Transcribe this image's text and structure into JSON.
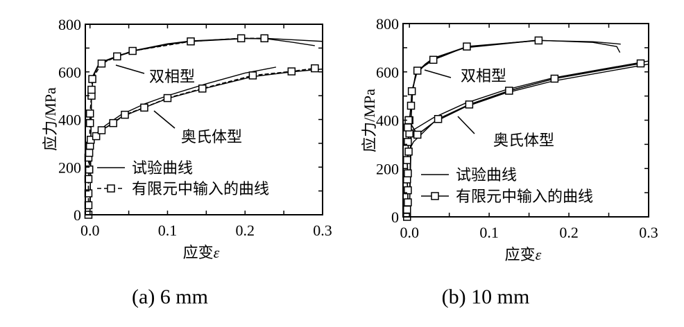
{
  "chart_data": [
    {
      "type": "line",
      "caption": "(a) 6 mm",
      "xlabel": "应变",
      "xlabel_symbol": "ε",
      "ylabel": "应力/MPa",
      "xlim": [
        -0.006,
        0.3
      ],
      "ylim": [
        0,
        800
      ],
      "xticks": [
        0.0,
        0.1,
        0.2,
        0.3
      ],
      "xtick_labels": [
        "0.0",
        "0.1",
        "0.2",
        "0.3"
      ],
      "yticks": [
        0,
        200,
        400,
        600,
        800
      ],
      "ytick_labels": [
        "0",
        "200",
        "400",
        "600",
        "800"
      ],
      "legend": {
        "placement": "center-left",
        "entries": [
          "试验曲线",
          "有限元中输入的曲线"
        ],
        "fe_style": "dashed"
      },
      "annotations": [
        "双相型",
        "奥氏体型"
      ],
      "series": [
        {
          "name": "试验曲线 双相型 1",
          "kind": "test",
          "x": [
            0,
            0.001,
            0.002,
            0.004,
            0.01,
            0.02,
            0.04,
            0.06,
            0.1,
            0.13,
            0.2,
            0.23,
            0.26,
            0.3
          ],
          "y": [
            0,
            300,
            500,
            580,
            620,
            645,
            670,
            690,
            715,
            728,
            740,
            740,
            735,
            728
          ]
        },
        {
          "name": "试验曲线 双相型 2",
          "kind": "test",
          "x": [
            0,
            0.001,
            0.002,
            0.004,
            0.01,
            0.02,
            0.04,
            0.06,
            0.1,
            0.13,
            0.2,
            0.23,
            0.26,
            0.29
          ],
          "y": [
            0,
            300,
            500,
            585,
            625,
            648,
            672,
            692,
            718,
            730,
            741,
            738,
            725,
            710
          ]
        },
        {
          "name": "试验曲线 奥氏体型 1",
          "kind": "test",
          "x": [
            0,
            0.001,
            0.003,
            0.008,
            0.02,
            0.04,
            0.07,
            0.1,
            0.15,
            0.2,
            0.24
          ],
          "y": [
            0,
            250,
            320,
            340,
            375,
            420,
            465,
            500,
            550,
            595,
            620
          ]
        },
        {
          "name": "试验曲线 奥氏体型 2",
          "kind": "test",
          "x": [
            0,
            0.001,
            0.003,
            0.008,
            0.02,
            0.04,
            0.07,
            0.1,
            0.145,
            0.21,
            0.26,
            0.3
          ],
          "y": [
            0,
            250,
            315,
            330,
            365,
            410,
            450,
            488,
            528,
            580,
            600,
            612
          ]
        },
        {
          "name": "有限元中输入的曲线 双相型",
          "kind": "fe",
          "x": [
            -0.002,
            -0.002,
            -0.002,
            -0.002,
            -0.001,
            0.0,
            0.0,
            0.002,
            0.002,
            0.003,
            0.015,
            0.035,
            0.055,
            0.13,
            0.195,
            0.225
          ],
          "y": [
            0,
            40,
            90,
            150,
            190,
            385,
            425,
            500,
            525,
            570,
            635,
            665,
            688,
            728,
            741,
            741
          ]
        },
        {
          "name": "有限元中输入的曲线 奥氏体型",
          "kind": "fe",
          "x": [
            -0.001,
            -0.002,
            -0.001,
            0.0,
            0.001,
            0.008,
            0.015,
            0.03,
            0.045,
            0.07,
            0.1,
            0.145,
            0.21,
            0.26,
            0.29
          ],
          "y": [
            190,
            240,
            260,
            290,
            315,
            330,
            355,
            385,
            420,
            450,
            490,
            530,
            585,
            602,
            615
          ]
        }
      ]
    },
    {
      "type": "line",
      "caption": "(b) 10 mm",
      "xlabel": "应变",
      "xlabel_symbol": "ε",
      "ylabel": "应力/MPa",
      "xlim": [
        -0.008,
        0.3
      ],
      "ylim": [
        0,
        800
      ],
      "xticks": [
        0.0,
        0.1,
        0.2,
        0.3
      ],
      "xtick_labels": [
        "0.0",
        "0.1",
        "0.2",
        "0.3"
      ],
      "yticks": [
        0,
        200,
        400,
        600,
        800
      ],
      "ytick_labels": [
        "0",
        "200",
        "400",
        "600",
        "800"
      ],
      "legend": {
        "placement": "center-left",
        "entries": [
          "试验曲线",
          "有限元中输入的曲线"
        ],
        "fe_style": "solid"
      },
      "annotations": [
        "双相型",
        "奥氏体型"
      ],
      "series": [
        {
          "name": "试验曲线 双相型 1",
          "kind": "test",
          "x": [
            0,
            0.002,
            0.004,
            0.008,
            0.02,
            0.03,
            0.07,
            0.16,
            0.23,
            0.265
          ],
          "y": [
            0,
            400,
            520,
            590,
            630,
            655,
            700,
            730,
            725,
            715
          ]
        },
        {
          "name": "试验曲线 双相型 2",
          "kind": "test",
          "x": [
            0,
            0.002,
            0.004,
            0.008,
            0.02,
            0.03,
            0.07,
            0.16,
            0.23,
            0.26,
            0.264
          ],
          "y": [
            0,
            400,
            525,
            595,
            633,
            657,
            702,
            731,
            722,
            705,
            680
          ]
        },
        {
          "name": "试验曲线 奥氏体型 1",
          "kind": "test",
          "x": [
            0,
            0.002,
            0.005,
            0.03,
            0.07,
            0.12,
            0.18,
            0.3
          ],
          "y": [
            0,
            330,
            360,
            410,
            470,
            525,
            575,
            645
          ]
        },
        {
          "name": "试验曲线 奥氏体型 2",
          "kind": "test",
          "x": [
            0,
            0.002,
            0.005,
            0.03,
            0.07,
            0.12,
            0.18,
            0.3
          ],
          "y": [
            0,
            290,
            310,
            390,
            455,
            512,
            562,
            632
          ]
        },
        {
          "name": "有限元中输入的曲线 双相型",
          "kind": "fe",
          "x": [
            0.0,
            0.002,
            0.003,
            0.01,
            0.03,
            0.072,
            0.162
          ],
          "y": [
            400,
            460,
            520,
            605,
            650,
            705,
            730
          ]
        },
        {
          "name": "有限元中输入的曲线 奥氏体型",
          "kind": "fe",
          "x": [
            -0.003,
            -0.003,
            -0.002,
            -0.002,
            -0.003,
            -0.002,
            -0.003,
            -0.001,
            -0.002,
            0.0,
            -0.002,
            -0.001,
            0.01,
            0.036,
            0.075,
            0.125,
            0.182,
            0.29
          ],
          "y": [
            0,
            30,
            60,
            110,
            155,
            180,
            235,
            270,
            310,
            345,
            370,
            400,
            340,
            405,
            465,
            522,
            572,
            635
          ]
        }
      ]
    }
  ]
}
